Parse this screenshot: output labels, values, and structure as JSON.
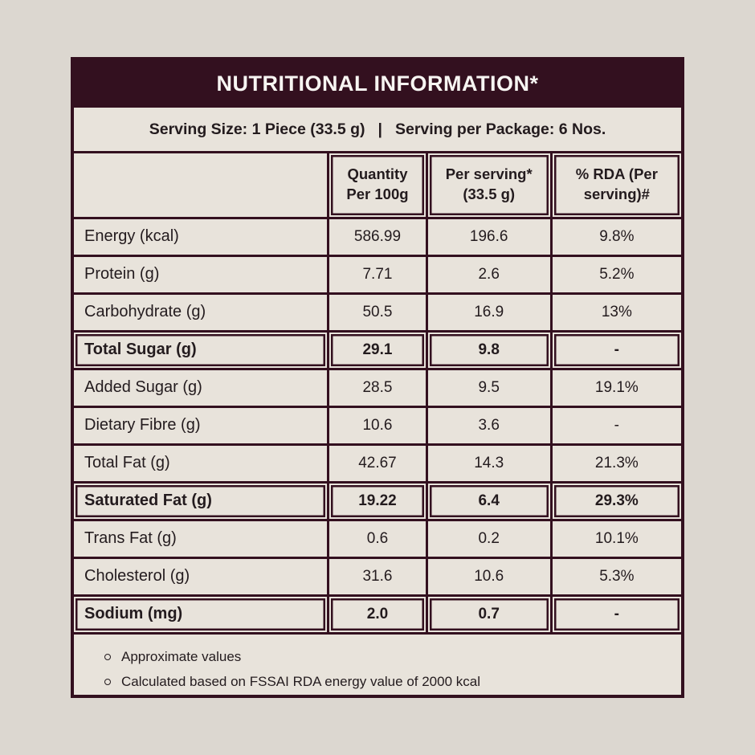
{
  "title": "NUTRITIONAL INFORMATION*",
  "serving_info": {
    "size": "Serving Size: 1 Piece (33.5 g)",
    "separator": "|",
    "per_package": "Serving per Package: 6 Nos."
  },
  "table": {
    "columns": [
      "",
      "Quantity Per 100g",
      "Per serving* (33.5 g)",
      "% RDA (Per serving)#"
    ],
    "rows": [
      {
        "label": "Energy (kcal)",
        "per_100g": "586.99",
        "per_serving": "196.6",
        "rda": "9.8%",
        "bold": false
      },
      {
        "label": "Protein (g)",
        "per_100g": "7.71",
        "per_serving": "2.6",
        "rda": "5.2%",
        "bold": false
      },
      {
        "label": "Carbohydrate (g)",
        "per_100g": "50.5",
        "per_serving": "16.9",
        "rda": "13%",
        "bold": false
      },
      {
        "label": "Total Sugar (g)",
        "per_100g": "29.1",
        "per_serving": "9.8",
        "rda": "-",
        "bold": true
      },
      {
        "label": "Added Sugar (g)",
        "per_100g": "28.5",
        "per_serving": "9.5",
        "rda": "19.1%",
        "bold": false
      },
      {
        "label": "Dietary Fibre (g)",
        "per_100g": "10.6",
        "per_serving": "3.6",
        "rda": "-",
        "bold": false
      },
      {
        "label": "Total Fat (g)",
        "per_100g": "42.67",
        "per_serving": "14.3",
        "rda": "21.3%",
        "bold": false
      },
      {
        "label": "Saturated Fat (g)",
        "per_100g": "19.22",
        "per_serving": "6.4",
        "rda": "29.3%",
        "bold": true
      },
      {
        "label": "Trans Fat (g)",
        "per_100g": "0.6",
        "per_serving": "0.2",
        "rda": "10.1%",
        "bold": false
      },
      {
        "label": "Cholesterol (g)",
        "per_100g": "31.6",
        "per_serving": "10.6",
        "rda": "5.3%",
        "bold": false
      },
      {
        "label": "Sodium (mg)",
        "per_100g": "2.0",
        "per_serving": "0.7",
        "rda": "-",
        "bold": true
      }
    ]
  },
  "notes": [
    "Approximate values",
    "Calculated based on FSSAI RDA energy value of 2000 kcal"
  ],
  "colors": {
    "maroon": "#33101f",
    "page_background": "#dcd7d0",
    "cell_background": "#e8e3db",
    "title_text": "#f7f5f2",
    "body_text": "#231b1e"
  }
}
